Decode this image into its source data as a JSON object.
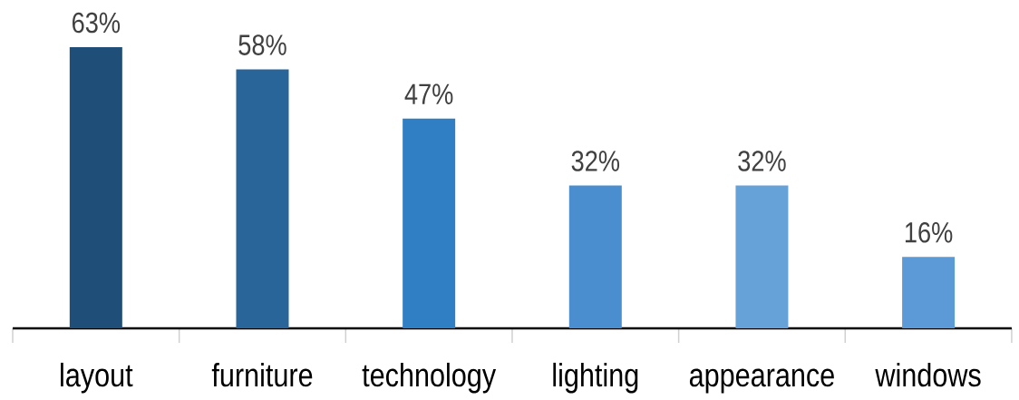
{
  "chart_data": {
    "type": "bar",
    "categories": [
      "layout",
      "furniture",
      "technology",
      "lighting",
      "appearance",
      "windows"
    ],
    "values": [
      63,
      58,
      47,
      32,
      32,
      16
    ],
    "colors": [
      "#1f4e79",
      "#2a6599",
      "#307ec4",
      "#4a8ecf",
      "#66a2d8",
      "#5b9ad6"
    ],
    "value_labels": [
      "63%",
      "58%",
      "47%",
      "32%",
      "32%",
      "16%"
    ]
  }
}
